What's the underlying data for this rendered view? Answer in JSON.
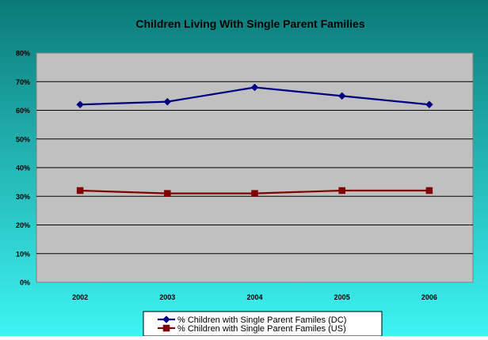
{
  "colors": {
    "background_top": "#0a7a78",
    "background_bottom": "#3ef4f4",
    "plot_area": "#c0c0c0",
    "gridline": "#000000",
    "dc_series": "#000080",
    "us_series": "#800000",
    "legend_bg": "#ffffff"
  },
  "chart_data": {
    "type": "line",
    "title": "Children Living With Single Parent Families",
    "xlabel": "",
    "ylabel": "",
    "categories": [
      "2002",
      "2003",
      "2004",
      "2005",
      "2006"
    ],
    "ylim": [
      0,
      80
    ],
    "y_ticks": [
      0,
      10,
      20,
      30,
      40,
      50,
      60,
      70,
      80
    ],
    "y_tick_labels": [
      "0%",
      "10%",
      "20%",
      "30%",
      "40%",
      "50%",
      "60%",
      "70%",
      "80%"
    ],
    "grid": true,
    "legend_position": "bottom",
    "series": [
      {
        "name": "% Children with Single Parent Familes (DC)",
        "marker": "diamond",
        "values": [
          62,
          63,
          68,
          65,
          62
        ]
      },
      {
        "name": "% Children with Single Parent Familes (US)",
        "marker": "square",
        "values": [
          32,
          31,
          31,
          32,
          32
        ]
      }
    ]
  }
}
